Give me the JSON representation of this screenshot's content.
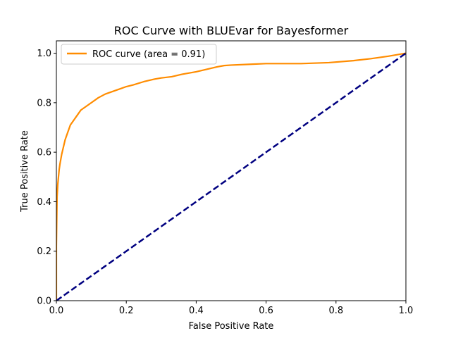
{
  "chart_data": {
    "type": "line",
    "title": "ROC Curve with BLUEvar for Bayesformer",
    "xlabel": "False Positive Rate",
    "ylabel": "True Positive Rate",
    "xlim": [
      0.0,
      1.0
    ],
    "ylim": [
      0.0,
      1.05
    ],
    "xticks": [
      "0.0",
      "0.2",
      "0.4",
      "0.6",
      "0.8",
      "1.0"
    ],
    "yticks": [
      "0.0",
      "0.2",
      "0.4",
      "0.6",
      "0.8",
      "1.0"
    ],
    "grid": false,
    "legend": {
      "position": "top-left"
    },
    "colors": {
      "roc": "#ff8c00",
      "diagonal": "#000080"
    },
    "series": [
      {
        "name": "ROC curve (area = 0.91)",
        "style": "solid",
        "x": [
          0.0,
          0.0,
          0.002,
          0.004,
          0.006,
          0.008,
          0.01,
          0.015,
          0.02,
          0.025,
          0.03,
          0.04,
          0.05,
          0.06,
          0.07,
          0.08,
          0.09,
          0.1,
          0.12,
          0.14,
          0.16,
          0.18,
          0.2,
          0.22,
          0.25,
          0.28,
          0.3,
          0.33,
          0.36,
          0.4,
          0.43,
          0.46,
          0.48,
          0.5,
          0.55,
          0.6,
          0.7,
          0.78,
          0.85,
          0.9,
          0.95,
          1.0
        ],
        "y": [
          0.0,
          0.22,
          0.42,
          0.47,
          0.5,
          0.53,
          0.55,
          0.59,
          0.62,
          0.65,
          0.67,
          0.71,
          0.73,
          0.75,
          0.77,
          0.78,
          0.79,
          0.8,
          0.82,
          0.835,
          0.845,
          0.855,
          0.865,
          0.872,
          0.885,
          0.895,
          0.9,
          0.905,
          0.915,
          0.925,
          0.935,
          0.945,
          0.95,
          0.952,
          0.955,
          0.958,
          0.958,
          0.962,
          0.97,
          0.978,
          0.988,
          1.0
        ]
      },
      {
        "name": "",
        "style": "dashed",
        "x": [
          0.0,
          1.0
        ],
        "y": [
          0.0,
          1.0
        ]
      }
    ]
  }
}
